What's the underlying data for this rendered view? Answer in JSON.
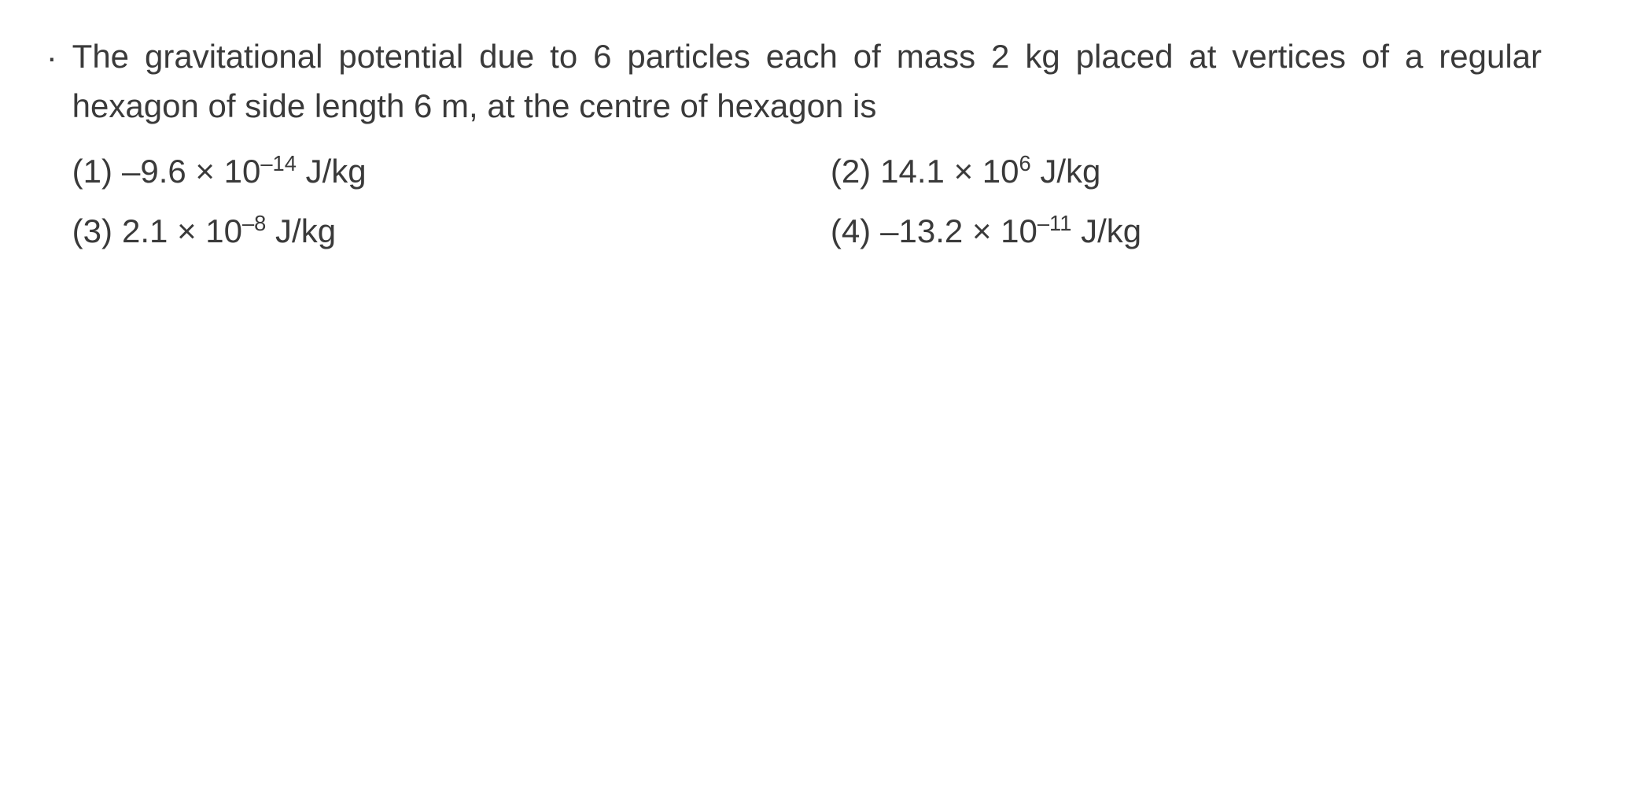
{
  "question": {
    "number": ".",
    "text": "The gravitational potential due to 6 particles each of mass 2 kg placed at vertices of a regular hexagon of side length 6 m, at the centre of hexagon is",
    "text_fontsize": 42,
    "text_color": "#3a3a3a",
    "background_color": "#ffffff"
  },
  "options": [
    {
      "label": "(1)",
      "coeff": "–9.6",
      "exp": "–14",
      "unit": "J/kg"
    },
    {
      "label": "(2)",
      "coeff": "14.1",
      "exp": "6",
      "unit": "J/kg"
    },
    {
      "label": "(3)",
      "coeff": "2.1",
      "exp": "–8",
      "unit": "J/kg"
    },
    {
      "label": "(4)",
      "coeff": "–13.2",
      "exp": "–11",
      "unit": "J/kg"
    }
  ],
  "layout": {
    "columns": 2,
    "option_fontsize": 42,
    "option_color": "#3a3a3a"
  }
}
